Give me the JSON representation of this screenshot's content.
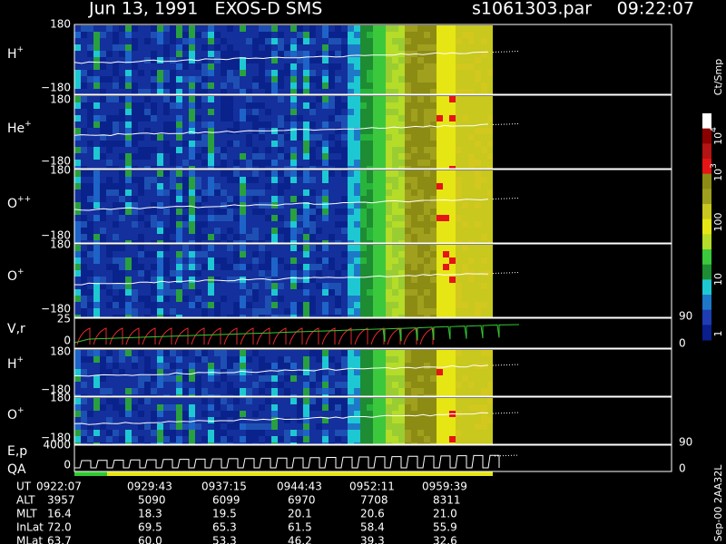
{
  "header": {
    "title": "Jun 13, 1991   EXOS-D SMS",
    "file": "s1061303.par",
    "time": "09:22:07"
  },
  "panels": [
    {
      "label": [
        {
          "base": "H",
          "sup": "+"
        }
      ],
      "left_ticks": [
        "180",
        "−180"
      ]
    },
    {
      "label": [
        {
          "base": "He",
          "sup": "+"
        }
      ],
      "left_ticks": [
        "180",
        "−180"
      ]
    },
    {
      "label": [
        {
          "base": "O",
          "sup": "++"
        }
      ],
      "left_ticks": [
        "180",
        "−180"
      ]
    },
    {
      "label": [
        {
          "base": "O",
          "sup": "+"
        }
      ],
      "left_ticks": [
        "180",
        "−180"
      ]
    },
    {
      "label": [
        {
          "base": "V,r"
        }
      ],
      "left_ticks": [
        "25",
        "0"
      ],
      "right_ticks": [
        "90",
        "0"
      ]
    },
    {
      "label": [
        {
          "base": "H",
          "sup": "+"
        }
      ],
      "left_ticks": [
        "180",
        "−180"
      ]
    },
    {
      "label": [
        {
          "base": "O",
          "sup": "+"
        }
      ],
      "left_ticks": [
        "180",
        "−180"
      ]
    },
    {
      "label": [
        {
          "base": "E,p"
        },
        {
          "base": "QA"
        }
      ],
      "left_ticks": [
        "4000",
        "0"
      ],
      "right_ticks": [
        "90",
        "0"
      ]
    }
  ],
  "colorbar": {
    "unit": "Ct/Smp",
    "labels": [
      {
        "base": "10",
        "sup": "4"
      },
      {
        "base": "10",
        "sup": "3"
      },
      {
        "base": "100"
      },
      {
        "base": "10"
      },
      {
        "base": "1"
      }
    ]
  },
  "footer": "Sep-00  2AA32L",
  "ephemeris": {
    "labels": [
      "UT",
      "ALT",
      "MLT",
      "InLat",
      "MLat"
    ],
    "rows": [
      [
        "0922:07",
        "0929:43",
        "0937:15",
        "0944:43",
        "0952:11",
        "0959:39"
      ],
      [
        "3957",
        "5090",
        "6099",
        "6970",
        "7708",
        "8311"
      ],
      [
        "16.4",
        "18.3",
        "19.5",
        "20.1",
        "20.6",
        "21.0"
      ],
      [
        "72.0",
        "69.5",
        "65.3",
        "61.5",
        "58.4",
        "55.9"
      ],
      [
        "63.7",
        "60.0",
        "53.3",
        "46.2",
        "39.3",
        "32.6"
      ]
    ]
  }
}
